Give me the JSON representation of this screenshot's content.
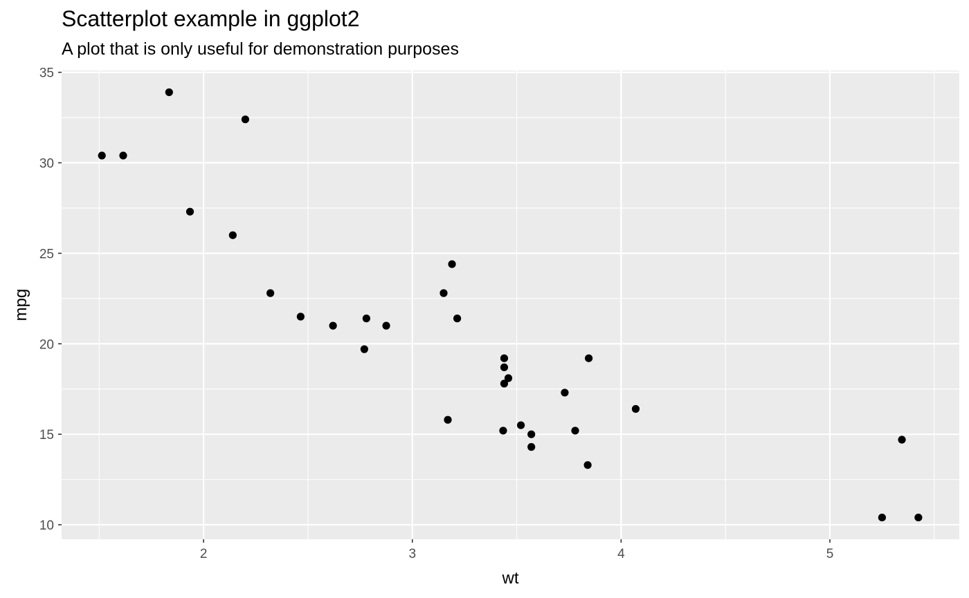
{
  "chart_data": {
    "type": "scatter",
    "title": "Scatterplot example in ggplot2",
    "subtitle": "A plot that is only useful for demonstration purposes",
    "xlabel": "wt",
    "ylabel": "mpg",
    "xlim": [
      1.32,
      5.62
    ],
    "ylim": [
      9.2,
      35.1
    ],
    "x_ticks": [
      2,
      3,
      4,
      5
    ],
    "y_ticks": [
      10,
      15,
      20,
      25,
      30,
      35
    ],
    "grid": true,
    "legend": "none",
    "colors": {
      "panel": "#ebebeb",
      "grid": "#ffffff",
      "point": "#000000",
      "tick_text": "#4d4d4d"
    },
    "series": [
      {
        "x": [
          2.62,
          2.875,
          2.32,
          3.215,
          3.44,
          3.46,
          3.57,
          3.19,
          3.15,
          3.44,
          3.44,
          4.07,
          3.73,
          3.78,
          5.25,
          5.424,
          5.345,
          2.2,
          1.615,
          1.835,
          2.465,
          3.52,
          3.435,
          3.84,
          3.845,
          1.935,
          2.14,
          1.513,
          3.17,
          2.77,
          3.57,
          2.78
        ],
        "y": [
          21.0,
          21.0,
          22.8,
          21.4,
          18.7,
          18.1,
          14.3,
          24.4,
          22.8,
          19.2,
          17.8,
          16.4,
          17.3,
          15.2,
          10.4,
          10.4,
          14.7,
          32.4,
          30.4,
          33.9,
          21.5,
          15.5,
          15.2,
          13.3,
          19.2,
          27.3,
          26.0,
          30.4,
          15.8,
          19.7,
          15.0,
          21.4
        ]
      }
    ]
  }
}
